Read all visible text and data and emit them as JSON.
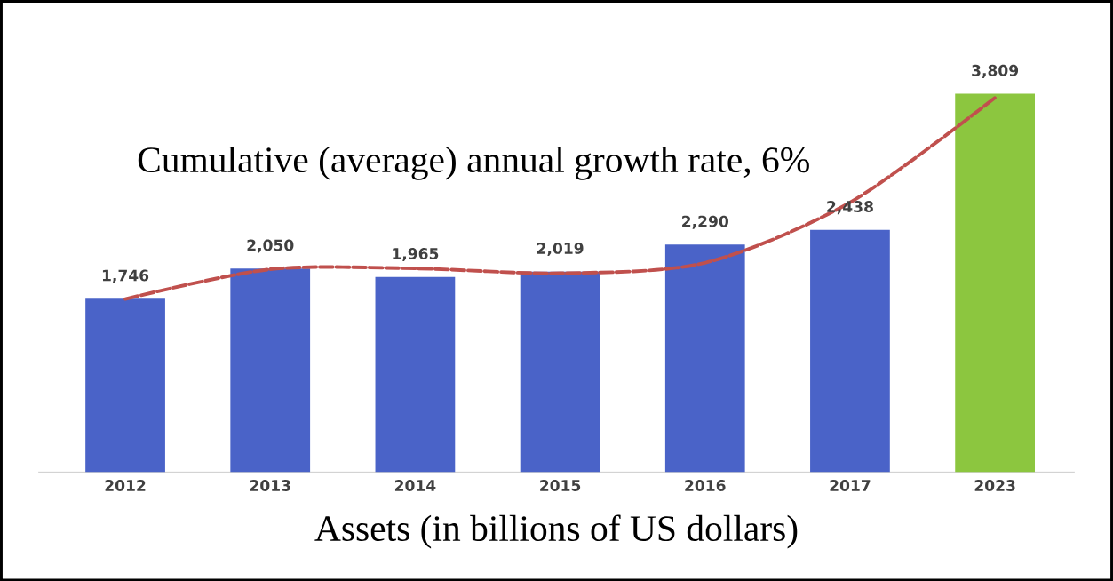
{
  "chart_data": {
    "type": "bar",
    "categories": [
      "2012",
      "2013",
      "2014",
      "2015",
      "2016",
      "2017",
      "2023"
    ],
    "xlabel": "Assets (in billions of US dollars)",
    "annotations": [
      "Cumulative (average) annual growth rate, 6%"
    ],
    "series": [
      {
        "colors": [
          "#4a63c8",
          "#4a63c8",
          "#4a63c8",
          "#4a63c8",
          "#4a63c8",
          "#4a63c8",
          "#8cc63f"
        ],
        "values": [
          1746,
          2050,
          1965,
          2019,
          2290,
          2438,
          3809
        ],
        "value_labels": [
          "1,746",
          "2,050",
          "1,965",
          "2,019",
          "2,290",
          "2,438",
          "3,809"
        ]
      },
      {
        "type": "line",
        "color": "#c0504d",
        "line_style": "dashed",
        "values": [
          1742,
          2042,
          2050,
          2002,
          2107,
          2715,
          3768
        ]
      }
    ]
  }
}
